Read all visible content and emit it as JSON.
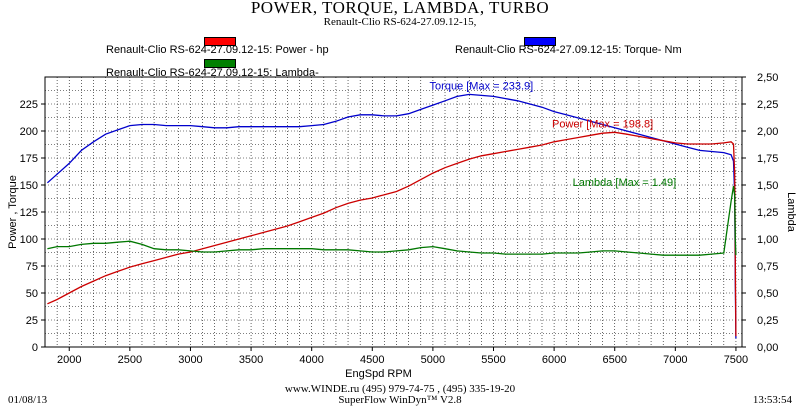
{
  "header": {
    "title": "POWER, TORQUE, LAMBDA, TURBO",
    "subtitle": "Renault-Clio RS-624-27.09.12-15,"
  },
  "legend": {
    "power": "Renault-Clio RS-624-27.09.12-15: Power -  hp",
    "lambda": "Renault-Clio RS-624-27.09.12-15: Lambda-",
    "torque": "Renault-Clio RS-624-27.09.12-15: Torque-  Nm"
  },
  "footer": {
    "line1": "www.WINDE.ru  (495) 979-74-75 , (495) 335-19-20",
    "line2": "SuperFlow WinDyn™ V2.8",
    "date": "01/08/13",
    "time": "13:53:54"
  },
  "colors": {
    "power": "#cc0000",
    "torque": "#0000cc",
    "lambda": "#007700",
    "power_swatch": "#ff0000",
    "torque_swatch": "#0000ff",
    "lambda_swatch": "#008000"
  },
  "chart_data": {
    "type": "line",
    "title": "POWER, TORQUE, LAMBDA, TURBO",
    "xlabel": "EngSpd  RPM",
    "ylabel_left": "Power , Torque",
    "ylabel_right": "Lambda",
    "xlim": [
      1800,
      7550
    ],
    "ylim_left": [
      0,
      250
    ],
    "ylim_right": [
      0,
      2.5
    ],
    "grid": true,
    "x_ticks": [
      "2000",
      "2500",
      "3000",
      "3500",
      "4000",
      "4500",
      "5000",
      "5500",
      "6000",
      "6500",
      "7000",
      "7500"
    ],
    "y_left_ticks": [
      "0",
      "25",
      "50",
      "75",
      "100",
      "125",
      "150",
      "175",
      "200",
      "225"
    ],
    "y_right_ticks": [
      "0,00",
      "0,25",
      "0,50",
      "0,75",
      "1,00",
      "1,25",
      "1,50",
      "1,75",
      "2,00",
      "2,25",
      "2,50"
    ],
    "series": [
      {
        "name": "Torque",
        "axis": "left",
        "annotation": "Torque [Max = 233.9]",
        "x": [
          1820,
          1900,
          2000,
          2100,
          2200,
          2300,
          2400,
          2500,
          2600,
          2700,
          2800,
          2900,
          3000,
          3100,
          3200,
          3300,
          3400,
          3500,
          3600,
          3700,
          3800,
          3900,
          4000,
          4100,
          4200,
          4300,
          4400,
          4500,
          4600,
          4700,
          4800,
          4900,
          5000,
          5100,
          5200,
          5300,
          5400,
          5500,
          5600,
          5700,
          5800,
          5900,
          6000,
          6100,
          6200,
          6300,
          6400,
          6500,
          6600,
          6700,
          6800,
          6900,
          7000,
          7100,
          7200,
          7300,
          7400,
          7460,
          7480,
          7490,
          7495,
          7500
        ],
        "y": [
          152,
          160,
          170,
          182,
          190,
          197,
          201,
          205,
          206,
          206,
          205,
          205,
          205,
          204,
          203,
          203,
          204,
          204,
          204,
          204,
          204,
          204,
          205,
          206,
          209,
          213,
          215,
          215,
          214,
          214,
          216,
          220,
          224,
          228,
          232,
          233.9,
          233,
          232,
          230,
          228,
          225,
          222,
          218,
          215,
          212,
          209,
          206,
          203,
          200,
          197,
          194,
          191,
          188,
          185,
          182,
          181,
          180,
          178,
          172,
          140,
          60,
          8
        ]
      },
      {
        "name": "Power",
        "axis": "left",
        "annotation": "Power  [Max = 198.8]",
        "x": [
          1820,
          1900,
          2000,
          2100,
          2200,
          2300,
          2400,
          2500,
          2600,
          2700,
          2800,
          2900,
          3000,
          3100,
          3200,
          3300,
          3400,
          3500,
          3600,
          3700,
          3800,
          3900,
          4000,
          4100,
          4200,
          4300,
          4400,
          4500,
          4600,
          4700,
          4800,
          4900,
          5000,
          5100,
          5200,
          5300,
          5400,
          5500,
          5600,
          5700,
          5800,
          5900,
          6000,
          6100,
          6200,
          6300,
          6400,
          6500,
          6600,
          6700,
          6800,
          6900,
          7000,
          7100,
          7200,
          7300,
          7400,
          7460,
          7480,
          7490,
          7495,
          7500
        ],
        "y": [
          40,
          44,
          50,
          56,
          61,
          66,
          70,
          74,
          77,
          80,
          83,
          86,
          88,
          91,
          94,
          97,
          100,
          103,
          106,
          109,
          112,
          116,
          120,
          124,
          129,
          133,
          136,
          138,
          141,
          144,
          149,
          155,
          161,
          166,
          170,
          174,
          177,
          179,
          181,
          183,
          185,
          187,
          190,
          192,
          194,
          196,
          198,
          198.8,
          197,
          195,
          193,
          191,
          189,
          188,
          188,
          188,
          189,
          190,
          188,
          160,
          80,
          10
        ]
      },
      {
        "name": "Lambda",
        "axis": "right",
        "annotation": "Lambda [Max = 1.49]",
        "x": [
          1820,
          1900,
          2000,
          2100,
          2200,
          2300,
          2400,
          2500,
          2600,
          2700,
          2800,
          2900,
          3000,
          3100,
          3200,
          3300,
          3400,
          3500,
          3600,
          3700,
          3800,
          3900,
          4000,
          4100,
          4200,
          4300,
          4400,
          4500,
          4600,
          4700,
          4800,
          4900,
          5000,
          5100,
          5200,
          5300,
          5400,
          5500,
          5600,
          5700,
          5800,
          5900,
          6000,
          6100,
          6200,
          6300,
          6400,
          6500,
          6600,
          6700,
          6800,
          6900,
          7000,
          7100,
          7200,
          7300,
          7400,
          7460,
          7480,
          7490,
          7495,
          7500
        ],
        "y": [
          0.91,
          0.93,
          0.93,
          0.95,
          0.96,
          0.96,
          0.97,
          0.98,
          0.95,
          0.91,
          0.9,
          0.9,
          0.89,
          0.88,
          0.88,
          0.89,
          0.9,
          0.9,
          0.91,
          0.91,
          0.91,
          0.91,
          0.91,
          0.9,
          0.9,
          0.9,
          0.89,
          0.88,
          0.88,
          0.89,
          0.9,
          0.92,
          0.93,
          0.91,
          0.89,
          0.88,
          0.87,
          0.87,
          0.86,
          0.86,
          0.86,
          0.86,
          0.87,
          0.87,
          0.87,
          0.88,
          0.89,
          0.89,
          0.88,
          0.87,
          0.86,
          0.85,
          0.85,
          0.85,
          0.85,
          0.86,
          0.87,
          1.35,
          1.49,
          1.4,
          1.0,
          0.85
        ]
      }
    ]
  }
}
